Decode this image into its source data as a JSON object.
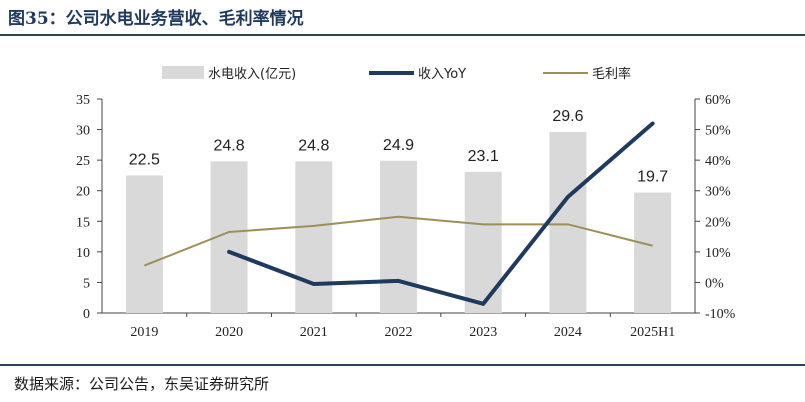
{
  "header": {
    "title": "图35：公司水电业务营收、毛利率情况"
  },
  "footer": {
    "source": "数据来源：公司公告，东吴证券研究所"
  },
  "colors": {
    "bar": "#d9d9d9",
    "yoy": "#1f3a5f",
    "margin": "#9c8f5a"
  },
  "chart_data": {
    "type": "bar",
    "categories": [
      "2019",
      "2020",
      "2021",
      "2022",
      "2023",
      "2024",
      "2025H1"
    ],
    "series": [
      {
        "name": "水电收入(亿元)",
        "type": "bar",
        "axis": "left",
        "values": [
          22.5,
          24.8,
          24.8,
          24.9,
          23.1,
          29.6,
          19.7
        ],
        "labels": [
          "22.5",
          "24.8",
          "24.8",
          "24.9",
          "23.1",
          "29.6",
          "19.7"
        ]
      },
      {
        "name": "收入YoY",
        "type": "line",
        "axis": "right",
        "values": [
          null,
          0.1,
          -0.005,
          0.005,
          -0.07,
          0.28,
          0.52
        ]
      },
      {
        "name": "毛利率",
        "type": "line",
        "axis": "right",
        "values": [
          0.055,
          0.165,
          0.185,
          0.215,
          0.19,
          0.19,
          0.12
        ]
      }
    ],
    "left_axis": {
      "ylim": [
        0,
        35
      ],
      "ticks": [
        "0",
        "5",
        "10",
        "15",
        "20",
        "25",
        "30",
        "35"
      ]
    },
    "right_axis": {
      "ylim": [
        -0.1,
        0.6
      ],
      "ticks": [
        "-10%",
        "0%",
        "10%",
        "20%",
        "30%",
        "40%",
        "50%",
        "60%"
      ]
    },
    "legend": {
      "position": "top"
    },
    "grid": false
  }
}
